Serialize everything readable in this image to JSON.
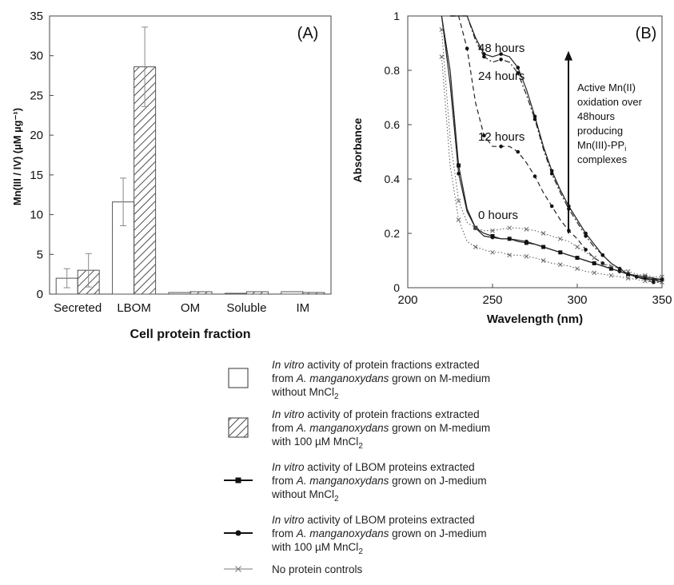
{
  "chart_data": [
    {
      "panel": "(A)",
      "type": "bar",
      "xlabel": "Cell protein fraction",
      "ylabel": "Mn(III / IV) (µM µg⁻¹)",
      "ylim": [
        0,
        35
      ],
      "yticks": [
        "0",
        "5",
        "10",
        "15",
        "20",
        "25",
        "30",
        "35"
      ],
      "categories": [
        "Secreted",
        "LBOM",
        "OM",
        "Soluble",
        "IM"
      ],
      "grid": false,
      "series": [
        {
          "name": "In vitro activity of protein fractions extracted from A. manganoxydans grown on M-medium without MnCl2",
          "pattern": "open",
          "values": [
            2.0,
            11.6,
            0.2,
            0.1,
            0.3
          ],
          "errors": [
            1.2,
            3.0,
            0,
            0,
            0
          ]
        },
        {
          "name": "In vitro activity of protein fractions extracted from A. manganoxydans grown on M-medium with 100 µM MnCl2",
          "pattern": "hatched",
          "values": [
            3.0,
            28.6,
            0.3,
            0.3,
            0.2
          ],
          "errors": [
            2.1,
            5.0,
            0,
            0,
            0
          ]
        }
      ]
    },
    {
      "panel": "(B)",
      "type": "line",
      "xlabel": "Wavelength (nm)",
      "ylabel": "Absorbance",
      "xlim": [
        200,
        350
      ],
      "ylim": [
        0,
        1
      ],
      "xticks": [
        "200",
        "250",
        "300",
        "350"
      ],
      "yticks": [
        "0",
        "0.2",
        "0.4",
        "0.6",
        "0.8",
        "1"
      ],
      "annotations": [
        "48 hours",
        "24 hours",
        "12 hours",
        "0 hours"
      ],
      "arrow_note": [
        "Active Mn(II)",
        "oxidation over",
        "48hours",
        "producing",
        "Mn(III)-PP",
        "complexes"
      ],
      "arrow_note_subscript": "i",
      "arrow_range": [
        0.2,
        0.86
      ],
      "series": [
        {
          "label": "48 hours",
          "style": "solid",
          "marker": "circle",
          "x": [
            225,
            230,
            235,
            240,
            245,
            250,
            255,
            260,
            265,
            270,
            275,
            280,
            285,
            290,
            295,
            300,
            305,
            310,
            315,
            320,
            325,
            330,
            335,
            340,
            345,
            350
          ],
          "y": [
            1.0,
            1.0,
            1.0,
            0.92,
            0.86,
            0.85,
            0.86,
            0.85,
            0.81,
            0.73,
            0.63,
            0.52,
            0.43,
            0.36,
            0.3,
            0.25,
            0.2,
            0.16,
            0.12,
            0.09,
            0.07,
            0.05,
            0.04,
            0.03,
            0.03,
            0.02
          ]
        },
        {
          "label": "24 hours",
          "style": "dashdot",
          "marker": "circle",
          "x": [
            225,
            230,
            235,
            240,
            245,
            250,
            255,
            260,
            265,
            270,
            275,
            280,
            285,
            290,
            295,
            300,
            305,
            310,
            315,
            320,
            325,
            330,
            335,
            340,
            345,
            350
          ],
          "y": [
            1.0,
            1.0,
            1.0,
            0.91,
            0.85,
            0.83,
            0.84,
            0.83,
            0.79,
            0.71,
            0.62,
            0.51,
            0.42,
            0.35,
            0.29,
            0.24,
            0.19,
            0.15,
            0.12,
            0.09,
            0.07,
            0.05,
            0.04,
            0.03,
            0.02,
            0.02
          ]
        },
        {
          "label": "12 hours",
          "style": "dashed",
          "marker": "circle",
          "x": [
            225,
            230,
            235,
            240,
            245,
            250,
            255,
            260,
            265,
            270,
            275,
            280,
            285,
            290,
            295,
            300,
            305,
            310,
            315,
            320,
            325,
            330,
            335,
            340,
            345,
            350
          ],
          "y": [
            1.0,
            1.0,
            0.88,
            0.68,
            0.56,
            0.52,
            0.52,
            0.52,
            0.5,
            0.46,
            0.41,
            0.35,
            0.3,
            0.25,
            0.21,
            0.18,
            0.14,
            0.11,
            0.09,
            0.07,
            0.06,
            0.05,
            0.04,
            0.03,
            0.03,
            0.02
          ]
        },
        {
          "label": "J-medium with 100 µM MnCl2 (0 hours)",
          "style": "solid",
          "marker": "circle",
          "x": [
            220,
            225,
            230,
            235,
            240,
            245,
            250,
            255,
            260,
            265,
            270,
            275,
            280,
            285,
            290,
            295,
            300,
            305,
            310,
            315,
            320,
            325,
            330,
            335,
            340,
            345,
            350
          ],
          "y": [
            1.0,
            0.75,
            0.42,
            0.28,
            0.22,
            0.19,
            0.185,
            0.18,
            0.18,
            0.175,
            0.17,
            0.16,
            0.15,
            0.14,
            0.13,
            0.12,
            0.11,
            0.1,
            0.09,
            0.08,
            0.07,
            0.06,
            0.05,
            0.04,
            0.035,
            0.03,
            0.03
          ]
        },
        {
          "label": "J-medium without MnCl2 (0 hours)",
          "style": "solid",
          "marker": "square",
          "x": [
            220,
            225,
            230,
            235,
            240,
            245,
            250,
            255,
            260,
            265,
            270,
            275,
            280,
            285,
            290,
            295,
            300,
            305,
            310,
            315,
            320,
            325,
            330,
            335,
            340,
            345,
            350
          ],
          "y": [
            1.0,
            0.8,
            0.45,
            0.29,
            0.22,
            0.2,
            0.19,
            0.18,
            0.18,
            0.17,
            0.165,
            0.16,
            0.15,
            0.14,
            0.13,
            0.12,
            0.11,
            0.1,
            0.09,
            0.08,
            0.07,
            0.06,
            0.05,
            0.045,
            0.04,
            0.035,
            0.03
          ]
        },
        {
          "label": "No protein control",
          "style": "dotted",
          "marker": "cross",
          "x": [
            220,
            225,
            230,
            235,
            240,
            245,
            250,
            255,
            260,
            265,
            270,
            275,
            280,
            285,
            290,
            295,
            300,
            305,
            310,
            315,
            320,
            325,
            330,
            335,
            340,
            345,
            350
          ],
          "y": [
            0.95,
            0.55,
            0.32,
            0.24,
            0.22,
            0.21,
            0.21,
            0.215,
            0.22,
            0.22,
            0.215,
            0.21,
            0.2,
            0.19,
            0.18,
            0.17,
            0.15,
            0.13,
            0.11,
            0.09,
            0.08,
            0.07,
            0.06,
            0.05,
            0.045,
            0.04,
            0.04
          ]
        },
        {
          "label": "No protein control",
          "style": "dotted",
          "marker": "cross",
          "x": [
            220,
            225,
            230,
            235,
            240,
            245,
            250,
            255,
            260,
            265,
            270,
            275,
            280,
            285,
            290,
            295,
            300,
            305,
            310,
            315,
            320,
            325,
            330,
            335,
            340,
            345,
            350
          ],
          "y": [
            0.85,
            0.45,
            0.25,
            0.17,
            0.15,
            0.14,
            0.13,
            0.13,
            0.12,
            0.12,
            0.115,
            0.11,
            0.1,
            0.09,
            0.085,
            0.08,
            0.07,
            0.06,
            0.055,
            0.05,
            0.045,
            0.04,
            0.035,
            0.03,
            0.025,
            0.02,
            0.02
          ]
        }
      ]
    }
  ],
  "legend": [
    {
      "symbol": "open-box",
      "lines": [
        [
          {
            "t": "In vitro",
            "i": true
          },
          {
            "t": " activity of protein fractions extracted"
          }
        ],
        [
          {
            "t": "from "
          },
          {
            "t": "A. manganoxydans",
            "i": true
          },
          {
            "t": " grown on M-medium"
          }
        ],
        [
          {
            "t": "without MnCl"
          },
          {
            "t": "2",
            "sub": true
          }
        ]
      ]
    },
    {
      "symbol": "hatched-box",
      "lines": [
        [
          {
            "t": "In vitro",
            "i": true
          },
          {
            "t": " activity of protein fractions extracted"
          }
        ],
        [
          {
            "t": "from "
          },
          {
            "t": "A. manganoxydans",
            "i": true
          },
          {
            "t": " grown on M-medium"
          }
        ],
        [
          {
            "t": "with 100 µM MnCl"
          },
          {
            "t": "2",
            "sub": true
          }
        ]
      ]
    },
    {
      "symbol": "line-square",
      "lines": [
        [
          {
            "t": "In vitro",
            "i": true
          },
          {
            "t": " activity of LBOM proteins extracted"
          }
        ],
        [
          {
            "t": "from "
          },
          {
            "t": "A. manganoxydans",
            "i": true
          },
          {
            "t": " grown on J-medium"
          }
        ],
        [
          {
            "t": "without MnCl"
          },
          {
            "t": "2",
            "sub": true
          }
        ]
      ]
    },
    {
      "symbol": "line-circle",
      "lines": [
        [
          {
            "t": "In vitro",
            "i": true
          },
          {
            "t": " activity of LBOM proteins extracted"
          }
        ],
        [
          {
            "t": "from "
          },
          {
            "t": "A. manganoxydans",
            "i": true
          },
          {
            "t": " grown on J-medium"
          }
        ],
        [
          {
            "t": "with 100 µM MnCl"
          },
          {
            "t": "2",
            "sub": true
          }
        ]
      ]
    },
    {
      "symbol": "line-cross",
      "lines": [
        [
          {
            "t": "No protein controls"
          }
        ]
      ]
    }
  ]
}
